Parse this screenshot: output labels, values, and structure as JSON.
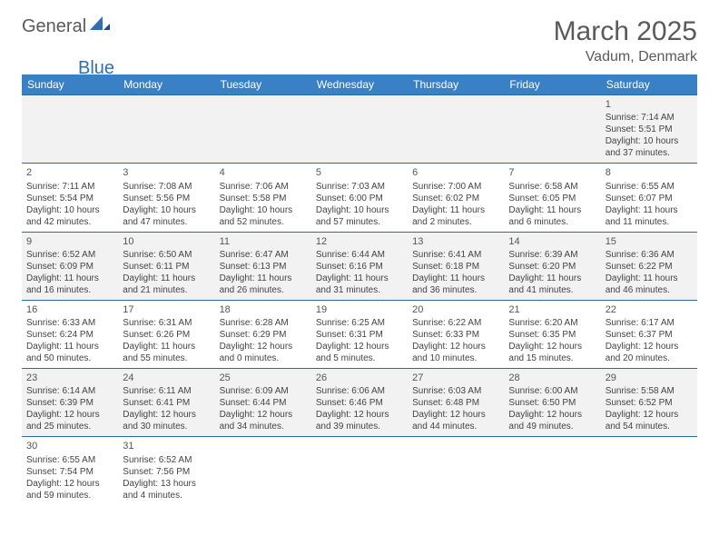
{
  "brand": {
    "part1": "General",
    "part2": "Blue"
  },
  "title": "March 2025",
  "location": "Vadum, Denmark",
  "colors": {
    "header_bg": "#3a80c4",
    "header_text": "#ffffff",
    "row_alt_bg": "#f2f2f2",
    "row_bg": "#ffffff",
    "border": "#2b6aa8",
    "title_color": "#5a5a5a",
    "brand_blue": "#2f6fb0"
  },
  "weekdays": [
    "Sunday",
    "Monday",
    "Tuesday",
    "Wednesday",
    "Thursday",
    "Friday",
    "Saturday"
  ],
  "weeks": [
    [
      null,
      null,
      null,
      null,
      null,
      null,
      {
        "d": "1",
        "sunrise": "7:14 AM",
        "sunset": "5:51 PM",
        "dl": "10 hours and 37 minutes."
      }
    ],
    [
      {
        "d": "2",
        "sunrise": "7:11 AM",
        "sunset": "5:54 PM",
        "dl": "10 hours and 42 minutes."
      },
      {
        "d": "3",
        "sunrise": "7:08 AM",
        "sunset": "5:56 PM",
        "dl": "10 hours and 47 minutes."
      },
      {
        "d": "4",
        "sunrise": "7:06 AM",
        "sunset": "5:58 PM",
        "dl": "10 hours and 52 minutes."
      },
      {
        "d": "5",
        "sunrise": "7:03 AM",
        "sunset": "6:00 PM",
        "dl": "10 hours and 57 minutes."
      },
      {
        "d": "6",
        "sunrise": "7:00 AM",
        "sunset": "6:02 PM",
        "dl": "11 hours and 2 minutes."
      },
      {
        "d": "7",
        "sunrise": "6:58 AM",
        "sunset": "6:05 PM",
        "dl": "11 hours and 6 minutes."
      },
      {
        "d": "8",
        "sunrise": "6:55 AM",
        "sunset": "6:07 PM",
        "dl": "11 hours and 11 minutes."
      }
    ],
    [
      {
        "d": "9",
        "sunrise": "6:52 AM",
        "sunset": "6:09 PM",
        "dl": "11 hours and 16 minutes."
      },
      {
        "d": "10",
        "sunrise": "6:50 AM",
        "sunset": "6:11 PM",
        "dl": "11 hours and 21 minutes."
      },
      {
        "d": "11",
        "sunrise": "6:47 AM",
        "sunset": "6:13 PM",
        "dl": "11 hours and 26 minutes."
      },
      {
        "d": "12",
        "sunrise": "6:44 AM",
        "sunset": "6:16 PM",
        "dl": "11 hours and 31 minutes."
      },
      {
        "d": "13",
        "sunrise": "6:41 AM",
        "sunset": "6:18 PM",
        "dl": "11 hours and 36 minutes."
      },
      {
        "d": "14",
        "sunrise": "6:39 AM",
        "sunset": "6:20 PM",
        "dl": "11 hours and 41 minutes."
      },
      {
        "d": "15",
        "sunrise": "6:36 AM",
        "sunset": "6:22 PM",
        "dl": "11 hours and 46 minutes."
      }
    ],
    [
      {
        "d": "16",
        "sunrise": "6:33 AM",
        "sunset": "6:24 PM",
        "dl": "11 hours and 50 minutes."
      },
      {
        "d": "17",
        "sunrise": "6:31 AM",
        "sunset": "6:26 PM",
        "dl": "11 hours and 55 minutes."
      },
      {
        "d": "18",
        "sunrise": "6:28 AM",
        "sunset": "6:29 PM",
        "dl": "12 hours and 0 minutes."
      },
      {
        "d": "19",
        "sunrise": "6:25 AM",
        "sunset": "6:31 PM",
        "dl": "12 hours and 5 minutes."
      },
      {
        "d": "20",
        "sunrise": "6:22 AM",
        "sunset": "6:33 PM",
        "dl": "12 hours and 10 minutes."
      },
      {
        "d": "21",
        "sunrise": "6:20 AM",
        "sunset": "6:35 PM",
        "dl": "12 hours and 15 minutes."
      },
      {
        "d": "22",
        "sunrise": "6:17 AM",
        "sunset": "6:37 PM",
        "dl": "12 hours and 20 minutes."
      }
    ],
    [
      {
        "d": "23",
        "sunrise": "6:14 AM",
        "sunset": "6:39 PM",
        "dl": "12 hours and 25 minutes."
      },
      {
        "d": "24",
        "sunrise": "6:11 AM",
        "sunset": "6:41 PM",
        "dl": "12 hours and 30 minutes."
      },
      {
        "d": "25",
        "sunrise": "6:09 AM",
        "sunset": "6:44 PM",
        "dl": "12 hours and 34 minutes."
      },
      {
        "d": "26",
        "sunrise": "6:06 AM",
        "sunset": "6:46 PM",
        "dl": "12 hours and 39 minutes."
      },
      {
        "d": "27",
        "sunrise": "6:03 AM",
        "sunset": "6:48 PM",
        "dl": "12 hours and 44 minutes."
      },
      {
        "d": "28",
        "sunrise": "6:00 AM",
        "sunset": "6:50 PM",
        "dl": "12 hours and 49 minutes."
      },
      {
        "d": "29",
        "sunrise": "5:58 AM",
        "sunset": "6:52 PM",
        "dl": "12 hours and 54 minutes."
      }
    ],
    [
      {
        "d": "30",
        "sunrise": "6:55 AM",
        "sunset": "7:54 PM",
        "dl": "12 hours and 59 minutes."
      },
      {
        "d": "31",
        "sunrise": "6:52 AM",
        "sunset": "7:56 PM",
        "dl": "13 hours and 4 minutes."
      },
      null,
      null,
      null,
      null,
      null
    ]
  ],
  "labels": {
    "sunrise": "Sunrise:",
    "sunset": "Sunset:",
    "daylight": "Daylight:"
  }
}
